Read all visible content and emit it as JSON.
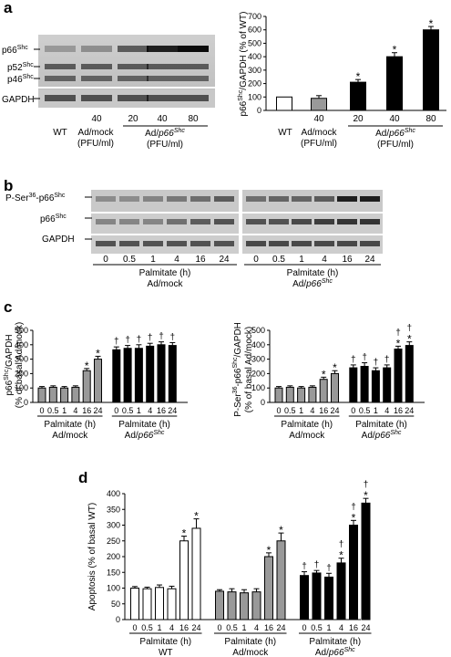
{
  "panels": {
    "a": {
      "letter": "a",
      "blot_labels": {
        "p66": "p66",
        "p52": "p52",
        "p46": "p46",
        "shc_sup": "Shc",
        "gapdh": "GAPDH"
      },
      "lane_bottom": [
        "WT",
        "Ad/mock",
        "(PFU/ml)",
        "Ad/",
        "p66",
        "Shc",
        "(PFU/ml)"
      ],
      "lane_doses": [
        "40",
        "20",
        "40",
        "80"
      ]
    },
    "b": {
      "letter": "b",
      "blot_labels": {
        "pser": "P-Ser",
        "pser_sup": "36",
        "pser_tail": "-p66",
        "p66": "p66",
        "shc_sup": "Shc",
        "gapdh": "GAPDH"
      },
      "times": [
        "0",
        "0.5",
        "1",
        "4",
        "16",
        "24"
      ],
      "group_top": "Palmitate (h)",
      "group_mock": "Ad/mock",
      "group_p66": "Ad/",
      "group_p66_it": "p66",
      "group_p66_sup": "Shc"
    },
    "c": {
      "letter": "c"
    },
    "d": {
      "letter": "d"
    },
    "shared": {
      "star": "*",
      "dagger": "†"
    }
  },
  "chart_data": [
    {
      "id": "a-right",
      "type": "bar",
      "ylabel": "p66Shc/GAPDH (% of WT)",
      "ylabel_parts": [
        "p66",
        "Shc",
        "/GAPDH (% of WT)"
      ],
      "ylim": [
        0,
        700
      ],
      "yticks": [
        "0",
        "100",
        "200",
        "300",
        "400",
        "500",
        "600",
        "700"
      ],
      "categories": [
        "WT",
        "40",
        "20",
        "40",
        "80"
      ],
      "values": [
        100,
        90,
        210,
        400,
        600
      ],
      "errors": [
        0,
        20,
        20,
        30,
        25
      ],
      "fills": [
        "#ffffff",
        "#999999",
        "#000000",
        "#000000",
        "#000000"
      ],
      "marks": [
        "",
        "",
        "*",
        "*",
        "*"
      ],
      "group_labels": [
        "WT",
        "Ad/mock",
        "(PFU/ml)",
        "Ad/",
        "p66",
        "Shc",
        "(PFU/ml)"
      ]
    },
    {
      "id": "c-left",
      "type": "bar",
      "ylabel_parts": [
        "p66",
        "Shc",
        "/GAPDH",
        "(% of basal Ad/mock)"
      ],
      "ylim": [
        0,
        500
      ],
      "yticks": [
        "0",
        "100",
        "200",
        "300",
        "400",
        "500"
      ],
      "categories": [
        "0",
        "0.5",
        "1",
        "4",
        "16",
        "24",
        "0",
        "0.5",
        "1",
        "4",
        "16",
        "24"
      ],
      "values": [
        100,
        105,
        100,
        105,
        220,
        300,
        365,
        375,
        375,
        390,
        400,
        395
      ],
      "errors": [
        10,
        10,
        10,
        10,
        15,
        20,
        20,
        20,
        25,
        20,
        20,
        20
      ],
      "fills": [
        "#999999",
        "#999999",
        "#999999",
        "#999999",
        "#999999",
        "#999999",
        "#000000",
        "#000000",
        "#000000",
        "#000000",
        "#000000",
        "#000000"
      ],
      "marks": [
        "",
        "",
        "",
        "",
        "*",
        "*",
        "†",
        "†",
        "†",
        "†",
        "†",
        "†"
      ],
      "xgroup_top": "Palmitate (h)",
      "xgroups": [
        "Ad/mock",
        "Ad/p66Shc"
      ]
    },
    {
      "id": "c-right",
      "type": "bar",
      "ylabel_parts": [
        "P-Ser",
        "36",
        "-p66",
        "Shc",
        "/GAPDH",
        "(% of basal Ad/mock)"
      ],
      "ylim": [
        0,
        500
      ],
      "yticks": [
        "0",
        "100",
        "200",
        "300",
        "400",
        "500"
      ],
      "categories": [
        "0",
        "0.5",
        "1",
        "4",
        "16",
        "24",
        "0",
        "0.5",
        "1",
        "4",
        "16",
        "24"
      ],
      "values": [
        100,
        105,
        100,
        105,
        160,
        200,
        240,
        250,
        220,
        240,
        370,
        395
      ],
      "errors": [
        10,
        10,
        10,
        10,
        15,
        20,
        20,
        25,
        20,
        20,
        20,
        25
      ],
      "fills": [
        "#999999",
        "#999999",
        "#999999",
        "#999999",
        "#999999",
        "#999999",
        "#000000",
        "#000000",
        "#000000",
        "#000000",
        "#000000",
        "#000000"
      ],
      "marks": [
        "",
        "",
        "",
        "",
        "*",
        "*",
        "†",
        "†",
        "†",
        "†",
        "*†",
        "*†"
      ],
      "xgroup_top": "Palmitate (h)",
      "xgroups": [
        "Ad/mock",
        "Ad/p66Shc"
      ]
    },
    {
      "id": "d",
      "type": "bar",
      "ylabel": "Apoptosis (% of basal WT)",
      "ylim": [
        0,
        400
      ],
      "yticks": [
        "0",
        "50",
        "100",
        "150",
        "200",
        "250",
        "300",
        "350",
        "400"
      ],
      "categories": [
        "0",
        "0.5",
        "1",
        "4",
        "16",
        "24",
        "0",
        "0.5",
        "1",
        "4",
        "16",
        "24",
        "0",
        "0.5",
        "1",
        "4",
        "16",
        "24"
      ],
      "values": [
        100,
        98,
        102,
        98,
        250,
        290,
        90,
        88,
        85,
        88,
        200,
        250,
        140,
        148,
        135,
        180,
        300,
        370
      ],
      "errors": [
        5,
        5,
        8,
        8,
        15,
        30,
        5,
        10,
        10,
        10,
        12,
        25,
        12,
        8,
        12,
        15,
        15,
        15
      ],
      "fills": [
        "#ffffff",
        "#ffffff",
        "#ffffff",
        "#ffffff",
        "#ffffff",
        "#ffffff",
        "#999999",
        "#999999",
        "#999999",
        "#999999",
        "#999999",
        "#999999",
        "#000000",
        "#000000",
        "#000000",
        "#000000",
        "#000000",
        "#000000"
      ],
      "marks": [
        "",
        "",
        "",
        "",
        "*",
        "*",
        "",
        "",
        "",
        "",
        "*",
        "*",
        "†",
        "†",
        "†",
        "*†",
        "*†",
        "*†"
      ],
      "xgroup_top": "Palmitate (h)",
      "xgroups": [
        "WT",
        "Ad/mock",
        "Ad/p66Shc"
      ]
    }
  ]
}
